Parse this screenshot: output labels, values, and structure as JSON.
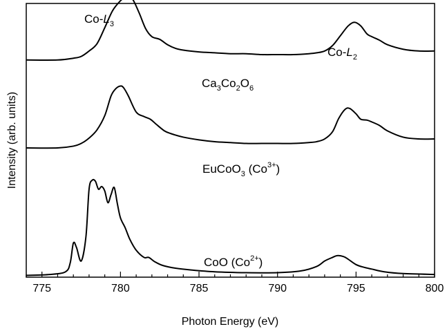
{
  "chart_data": {
    "type": "line",
    "title": "",
    "xlabel": "Photon Energy (eV)",
    "ylabel": "Intensity (arb. units)",
    "xlim": [
      774,
      800
    ],
    "ylim": [
      0,
      3.05
    ],
    "x_ticks": [
      "775",
      "780",
      "785",
      "790",
      "795",
      "800"
    ],
    "y_ticks_shown": false,
    "grid": false,
    "legend": "none",
    "annotations": {
      "l3": {
        "base": "Co-",
        "italic": "L",
        "sub": "3"
      },
      "l2": {
        "base": "Co-",
        "italic": "L",
        "sub": "2"
      }
    },
    "series": [
      {
        "name": "Ca3Co2O6",
        "label_parts": {
          "p1": "Ca",
          "s1": "3",
          "p2": "Co",
          "s2": "2",
          "p3": "O",
          "s3": "6"
        },
        "color": "#000000",
        "x": [
          774.0,
          776.0,
          777.0,
          777.5,
          778.0,
          778.5,
          779.0,
          779.5,
          780.0,
          780.3,
          780.5,
          780.8,
          781.2,
          781.6,
          782.0,
          782.5,
          783.0,
          783.5,
          784.0,
          785.0,
          786.0,
          787.0,
          788.0,
          789.0,
          790.0,
          791.0,
          792.0,
          792.5,
          793.0,
          793.5,
          794.0,
          794.5,
          794.9,
          795.3,
          795.7,
          796.0,
          796.5,
          797.0,
          798.0,
          799.0,
          800.0
        ],
        "y": [
          2.42,
          2.42,
          2.44,
          2.46,
          2.52,
          2.6,
          2.78,
          2.97,
          3.08,
          3.12,
          3.13,
          3.09,
          2.94,
          2.77,
          2.68,
          2.65,
          2.59,
          2.55,
          2.53,
          2.51,
          2.5,
          2.49,
          2.49,
          2.48,
          2.48,
          2.48,
          2.49,
          2.5,
          2.52,
          2.58,
          2.69,
          2.8,
          2.84,
          2.8,
          2.71,
          2.68,
          2.64,
          2.59,
          2.54,
          2.52,
          2.52
        ]
      },
      {
        "name": "EuCoO3 (Co3+)",
        "label_parts": {
          "p1": "EuCoO",
          "s1": "3",
          "p2": " (Co",
          "sup": "3+",
          "p3": ")"
        },
        "color": "#000000",
        "x": [
          774.0,
          776.0,
          777.0,
          777.5,
          778.0,
          778.5,
          779.0,
          779.4,
          779.7,
          780.0,
          780.2,
          780.5,
          781.0,
          781.5,
          781.9,
          782.3,
          782.8,
          783.2,
          784.0,
          785.0,
          786.0,
          787.0,
          788.0,
          789.0,
          790.0,
          791.0,
          792.0,
          792.5,
          793.0,
          793.5,
          793.9,
          794.3,
          794.6,
          795.0,
          795.3,
          795.7,
          796.0,
          796.5,
          797.0,
          798.0,
          799.0,
          800.0
        ],
        "y": [
          1.44,
          1.44,
          1.46,
          1.49,
          1.55,
          1.64,
          1.8,
          2.02,
          2.1,
          2.13,
          2.11,
          2.02,
          1.84,
          1.79,
          1.76,
          1.7,
          1.63,
          1.6,
          1.56,
          1.53,
          1.51,
          1.5,
          1.49,
          1.49,
          1.49,
          1.49,
          1.5,
          1.51,
          1.54,
          1.62,
          1.77,
          1.87,
          1.88,
          1.82,
          1.76,
          1.75,
          1.73,
          1.69,
          1.63,
          1.56,
          1.54,
          1.54
        ]
      },
      {
        "name": "CoO (Co2+)",
        "label_parts": {
          "p1": "CoO (Co",
          "sup": "2+",
          "p2": ")"
        },
        "color": "#000000",
        "x": [
          774.0,
          775.5,
          776.5,
          776.8,
          777.0,
          777.2,
          777.5,
          777.8,
          778.0,
          778.2,
          778.4,
          778.6,
          778.8,
          779.0,
          779.2,
          779.4,
          779.6,
          779.8,
          780.0,
          780.3,
          780.6,
          781.0,
          781.5,
          781.8,
          782.2,
          782.7,
          783.5,
          784.5,
          786.0,
          788.0,
          790.0,
          791.5,
          792.5,
          793.0,
          793.5,
          793.8,
          794.2,
          794.5,
          795.0,
          795.5,
          796.0,
          796.8,
          798.0,
          800.0
        ],
        "y": [
          0.02,
          0.03,
          0.06,
          0.16,
          0.38,
          0.33,
          0.18,
          0.45,
          0.98,
          1.08,
          1.07,
          0.98,
          1.01,
          0.96,
          0.83,
          0.92,
          1.0,
          0.82,
          0.66,
          0.55,
          0.42,
          0.3,
          0.22,
          0.22,
          0.17,
          0.13,
          0.1,
          0.08,
          0.06,
          0.05,
          0.05,
          0.07,
          0.12,
          0.18,
          0.22,
          0.24,
          0.23,
          0.2,
          0.14,
          0.11,
          0.09,
          0.06,
          0.04,
          0.03
        ]
      }
    ]
  }
}
